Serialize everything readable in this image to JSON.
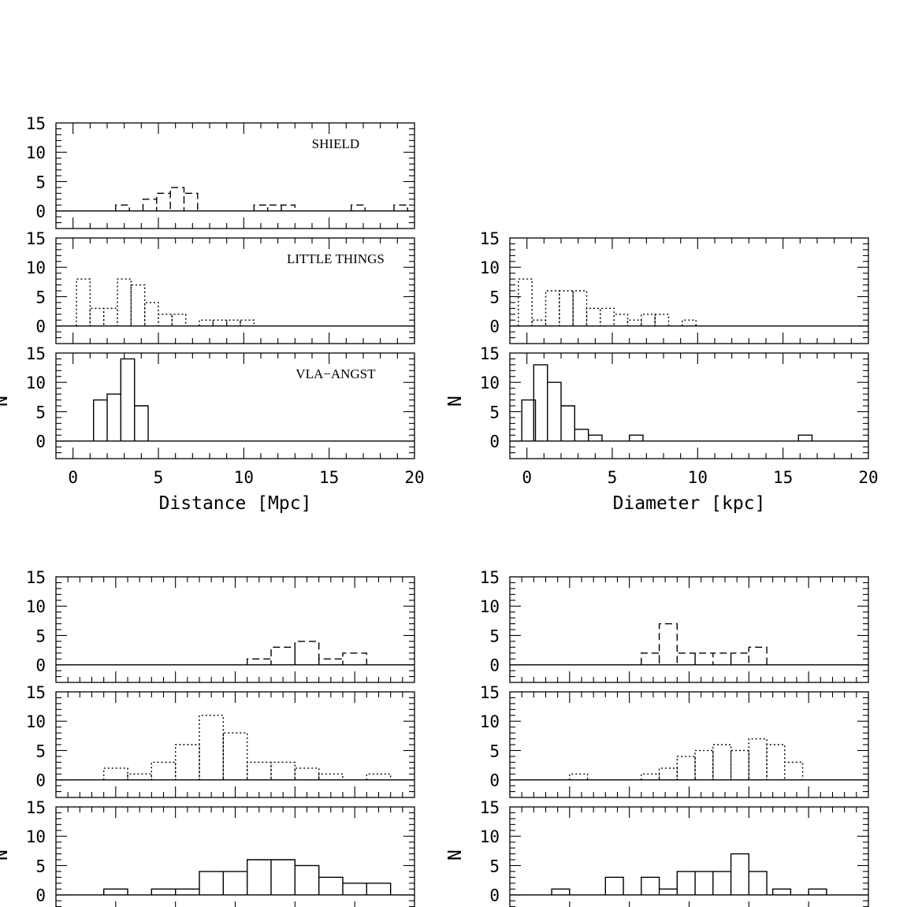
{
  "chart_data": [
    {
      "type": "bar",
      "group": "distance",
      "xlabel": "Distance [Mpc]",
      "ylabel": "N",
      "xlim": [
        -1,
        20
      ],
      "ylim": [
        -3,
        15
      ],
      "xticks": [
        0,
        5,
        10,
        15,
        20
      ],
      "yticks": [
        0,
        5,
        10,
        15
      ],
      "panels": [
        {
          "name": "SHIELD",
          "style": "dashed",
          "bin_width": 0.8,
          "bins": [
            [
              2.5,
              1
            ],
            [
              4.1,
              2
            ],
            [
              4.9,
              3
            ],
            [
              5.7,
              4
            ],
            [
              6.5,
              3
            ],
            [
              10.6,
              1
            ],
            [
              11.4,
              1
            ],
            [
              12.2,
              1
            ],
            [
              16.3,
              1
            ],
            [
              18.8,
              1
            ]
          ]
        },
        {
          "name": "LITTLE THINGS",
          "style": "dotted",
          "bin_width": 0.8,
          "bins": [
            [
              0.2,
              8
            ],
            [
              1.0,
              3
            ],
            [
              1.8,
              3
            ],
            [
              2.6,
              8
            ],
            [
              3.4,
              7
            ],
            [
              4.2,
              4
            ],
            [
              5.0,
              2
            ],
            [
              5.8,
              2
            ],
            [
              7.4,
              1
            ],
            [
              8.2,
              1
            ],
            [
              9.0,
              1
            ],
            [
              9.8,
              1
            ]
          ]
        },
        {
          "name": "VLA−ANGST",
          "style": "solid",
          "bin_width": 0.8,
          "bins": [
            [
              1.2,
              7
            ],
            [
              2.0,
              8
            ],
            [
              2.8,
              14
            ],
            [
              3.6,
              6
            ]
          ]
        }
      ]
    },
    {
      "type": "bar",
      "group": "diameter",
      "xlabel": "Diameter [kpc]",
      "ylabel": "N",
      "xlim": [
        -1,
        20
      ],
      "ylim": [
        -3,
        15
      ],
      "xticks": [
        0,
        5,
        10,
        15,
        20
      ],
      "yticks": [
        0,
        5,
        10,
        15
      ],
      "panels": [
        {
          "name": "",
          "style": "dotted",
          "bin_width": 0.8,
          "bins": [
            [
              -0.5,
              8
            ],
            [
              0.3,
              1
            ],
            [
              1.1,
              6
            ],
            [
              1.9,
              6
            ],
            [
              2.7,
              6
            ],
            [
              3.5,
              3
            ],
            [
              4.3,
              3
            ],
            [
              5.1,
              2
            ],
            [
              5.9,
              1
            ],
            [
              6.7,
              2
            ],
            [
              7.5,
              2
            ],
            [
              9.1,
              1
            ]
          ]
        },
        {
          "name": "",
          "style": "solid",
          "bin_width": 0.8,
          "bins": [
            [
              -0.3,
              7
            ],
            [
              0.4,
              13
            ],
            [
              1.2,
              10
            ],
            [
              2.0,
              6
            ],
            [
              2.8,
              2
            ],
            [
              3.6,
              1
            ],
            [
              6.0,
              1
            ],
            [
              15.9,
              1
            ]
          ]
        }
      ]
    },
    {
      "type": "bar",
      "group": "bottom-left",
      "ylabel": "N",
      "yticks": [
        0,
        5,
        10,
        15
      ],
      "ylim": [
        -3,
        15
      ],
      "xlim": [
        0,
        30
      ],
      "panels": [
        {
          "name": "",
          "style": "dashed",
          "bin_width": 2,
          "bins": [
            [
              16,
              1
            ],
            [
              18,
              3
            ],
            [
              20,
              4
            ],
            [
              22,
              1
            ],
            [
              24,
              2
            ]
          ]
        },
        {
          "name": "",
          "style": "dotted",
          "bin_width": 2,
          "bins": [
            [
              4,
              2
            ],
            [
              6,
              1
            ],
            [
              8,
              3
            ],
            [
              10,
              6
            ],
            [
              12,
              11
            ],
            [
              14,
              8
            ],
            [
              16,
              3
            ],
            [
              18,
              3
            ],
            [
              20,
              2
            ],
            [
              22,
              1
            ],
            [
              26,
              1
            ]
          ]
        },
        {
          "name": "",
          "style": "solid",
          "bin_width": 2,
          "bins": [
            [
              4,
              1
            ],
            [
              8,
              1
            ],
            [
              10,
              1
            ],
            [
              12,
              4
            ],
            [
              14,
              4
            ],
            [
              16,
              6
            ],
            [
              18,
              6
            ],
            [
              20,
              5
            ],
            [
              22,
              3
            ],
            [
              24,
              2
            ],
            [
              26,
              2
            ]
          ]
        }
      ]
    },
    {
      "type": "bar",
      "group": "bottom-right",
      "ylabel": "N",
      "yticks": [
        0,
        5,
        10,
        15
      ],
      "ylim": [
        -3,
        15
      ],
      "xlim": [
        0,
        30
      ],
      "panels": [
        {
          "name": "",
          "style": "dashed",
          "bin_width": 1.5,
          "bins": [
            [
              11,
              2
            ],
            [
              12.5,
              7
            ],
            [
              14,
              2
            ],
            [
              15.5,
              2
            ],
            [
              17,
              2
            ],
            [
              18.5,
              2
            ],
            [
              20,
              3
            ]
          ]
        },
        {
          "name": "",
          "style": "dotted",
          "bin_width": 1.5,
          "bins": [
            [
              5,
              1
            ],
            [
              11,
              1
            ],
            [
              12.5,
              2
            ],
            [
              14,
              4
            ],
            [
              15.5,
              5
            ],
            [
              17,
              6
            ],
            [
              18.5,
              5
            ],
            [
              20,
              7
            ],
            [
              21.5,
              6
            ],
            [
              23,
              3
            ]
          ]
        },
        {
          "name": "",
          "style": "solid",
          "bin_width": 1.5,
          "bins": [
            [
              3.5,
              1
            ],
            [
              8,
              3
            ],
            [
              11,
              3
            ],
            [
              12.5,
              1
            ],
            [
              14,
              4
            ],
            [
              15.5,
              4
            ],
            [
              17,
              4
            ],
            [
              18.5,
              7
            ],
            [
              20,
              4
            ],
            [
              22,
              1
            ],
            [
              25,
              1
            ]
          ]
        }
      ]
    }
  ]
}
